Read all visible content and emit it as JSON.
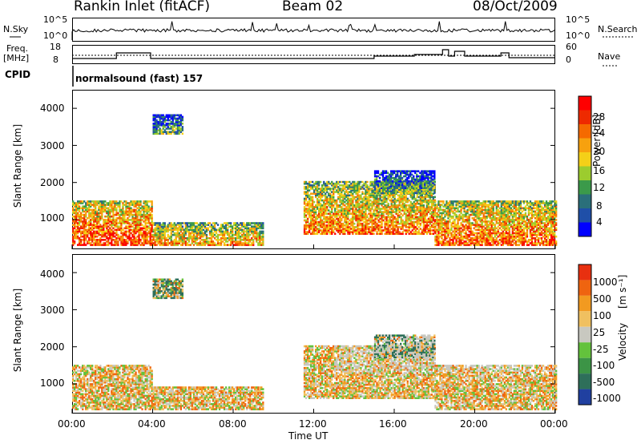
{
  "header": {
    "title": "Rankin Inlet (fitACF)",
    "beam": "Beam 02",
    "date": "08/Oct/2009"
  },
  "panels": {
    "nsky": {
      "left_label": "N.Sky",
      "right_label": "N.Search",
      "ticks_left": [
        "10^5",
        "10^0"
      ],
      "ticks_right": [
        "10^5",
        "10^0"
      ]
    },
    "freq": {
      "left_label_1": "Freq.",
      "left_label_2": "[MHz]",
      "right_label": "Nave",
      "ticks_left": [
        "18",
        "8"
      ],
      "ticks_right": [
        "60",
        "0"
      ]
    },
    "cpid": {
      "left_label": "CPID",
      "text": "normalsound (fast) 157"
    }
  },
  "xaxis": {
    "label": "Time UT",
    "ticks": [
      "00:00",
      "04:00",
      "08:00",
      "12:00",
      "16:00",
      "20:00",
      "00:00"
    ]
  },
  "power": {
    "ylabel": "Slant Range [km]",
    "yticks": [
      "4000",
      "3000",
      "2000",
      "1000"
    ],
    "cb_label": "Power [dB]",
    "cb_ticks": [
      "28",
      "24",
      "20",
      "16",
      "12",
      "8",
      "4"
    ],
    "colors": [
      "#0000ff",
      "#1f4fa8",
      "#2a6f7a",
      "#3b9a4a",
      "#9ccc2e",
      "#f4d018",
      "#f7a10e",
      "#f56a00",
      "#ee2a00",
      "#ff0000"
    ]
  },
  "velocity": {
    "ylabel": "Slant Range [km]",
    "yticks": [
      "4000",
      "3000",
      "2000",
      "1000"
    ],
    "cb_label_1": "Velocity",
    "cb_label_2": "[m s⁻¹]",
    "cb_ticks": [
      "1000",
      "500",
      "100",
      "25",
      "-25",
      "-100",
      "-500",
      "-1000"
    ],
    "colors": [
      "#2040a0",
      "#2e6f5a",
      "#3c9446",
      "#63c23c",
      "#c8c8c0",
      "#f0c060",
      "#f29a20",
      "#ef6410",
      "#e83010"
    ]
  },
  "chart_data": {
    "type": "heatmap",
    "title": "Rankin Inlet (fitACF)",
    "xlabel": "Time UT",
    "ylabel": "Slant Range [km]",
    "xlim": [
      0,
      24
    ],
    "ylim": [
      200,
      4500
    ],
    "power_scale": [
      0,
      30
    ],
    "velocity_scale": [
      -1000,
      1000
    ],
    "echo_bands": [
      {
        "t0": 0.0,
        "t1": 4.0,
        "r0": 300,
        "r1": 1500,
        "level": 0.85
      },
      {
        "t0": 4.0,
        "t1": 9.5,
        "r0": 300,
        "r1": 900,
        "level": 0.7
      },
      {
        "t0": 11.5,
        "t1": 18.0,
        "r0": 600,
        "r1": 2000,
        "level": 0.75
      },
      {
        "t0": 18.0,
        "t1": 24.0,
        "r0": 300,
        "r1": 1500,
        "level": 0.8
      },
      {
        "t0": 4.0,
        "t1": 5.5,
        "r0": 3300,
        "r1": 3800,
        "level": 0.4
      },
      {
        "t0": 15.0,
        "t1": 18.0,
        "r0": 1700,
        "r1": 2300,
        "level": 0.4
      }
    ]
  }
}
